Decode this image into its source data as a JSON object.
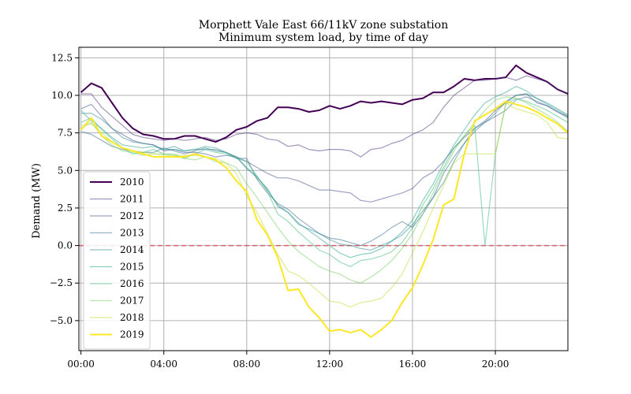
{
  "chart_data": {
    "type": "line",
    "title": "Morphett Vale East 66/11kV zone substation",
    "subtitle": "Minimum system load, by time of day",
    "xlabel": "",
    "ylabel": "Demand (MW)",
    "x_ticks": [
      "00:00",
      "04:00",
      "08:00",
      "12:00",
      "16:00",
      "20:00"
    ],
    "x_tick_hours": [
      0,
      4,
      8,
      12,
      16,
      20
    ],
    "y_ticks": [
      -5.0,
      -2.5,
      0.0,
      2.5,
      5.0,
      7.5,
      10.0,
      12.5
    ],
    "y_tick_labels": [
      "−5.0",
      "−2.5",
      "0.0",
      "2.5",
      "5.0",
      "7.5",
      "10.0",
      "12.5"
    ],
    "xlim": [
      -0.1,
      23.5
    ],
    "ylim": [
      -7.0,
      13.2
    ],
    "grid": true,
    "legend_position": "lower-left",
    "reference_line": {
      "y": 0,
      "color": "#d9606a",
      "style": "dashed"
    },
    "x": [
      0,
      0.5,
      1,
      1.5,
      2,
      2.5,
      3,
      3.5,
      4,
      4.5,
      5,
      5.5,
      6,
      6.5,
      7,
      7.5,
      8,
      8.5,
      9,
      9.5,
      10,
      10.5,
      11,
      11.5,
      12,
      12.5,
      13,
      13.5,
      14,
      14.5,
      15,
      15.5,
      16,
      16.5,
      17,
      17.5,
      18,
      18.5,
      19,
      19.5,
      20,
      20.5,
      21,
      21.5,
      22,
      22.5,
      23,
      23.5
    ],
    "series": [
      {
        "name": "2010",
        "color": "#440154",
        "width": 2.0,
        "opacity": 1.0,
        "values": [
          10.2,
          10.8,
          10.5,
          9.5,
          8.5,
          7.8,
          7.4,
          7.3,
          7.1,
          7.1,
          7.3,
          7.3,
          7.1,
          6.9,
          7.2,
          7.7,
          7.9,
          8.3,
          8.5,
          9.2,
          9.2,
          9.1,
          8.9,
          9.0,
          9.3,
          9.1,
          9.3,
          9.6,
          9.5,
          9.6,
          9.5,
          9.4,
          9.7,
          9.8,
          10.2,
          10.2,
          10.6,
          11.1,
          11.0,
          11.1,
          11.1,
          11.2,
          12.0,
          11.5,
          11.2,
          10.9,
          10.4,
          10.1
        ]
      },
      {
        "name": "2011",
        "color": "#472a7a",
        "width": 1.2,
        "opacity": 0.5,
        "values": [
          10.1,
          10.1,
          9.2,
          8.6,
          8.0,
          7.4,
          7.2,
          7.1,
          7.0,
          7.1,
          7.0,
          7.1,
          7.2,
          7.0,
          7.1,
          7.4,
          7.5,
          7.4,
          7.1,
          7.0,
          6.6,
          6.7,
          6.4,
          6.3,
          6.4,
          6.4,
          6.3,
          5.9,
          6.4,
          6.5,
          6.8,
          7.0,
          7.4,
          7.7,
          8.2,
          9.2,
          10.0,
          10.5,
          11.0,
          11.0,
          11.1,
          11.2,
          11.0,
          11.3,
          11.1,
          10.9,
          10.4,
          10.1
        ]
      },
      {
        "name": "2012",
        "color": "#3e4989",
        "width": 1.2,
        "opacity": 0.5,
        "values": [
          9.1,
          9.4,
          8.6,
          7.8,
          7.4,
          7.0,
          6.8,
          6.7,
          6.3,
          6.4,
          6.2,
          6.2,
          6.1,
          5.9,
          6.0,
          5.9,
          5.6,
          5.2,
          4.8,
          4.5,
          4.5,
          4.3,
          4.0,
          3.7,
          3.7,
          3.6,
          3.5,
          3.0,
          2.9,
          3.1,
          3.3,
          3.5,
          3.8,
          4.5,
          4.9,
          5.6,
          6.5,
          7.2,
          7.8,
          8.3,
          9.0,
          9.5,
          10.0,
          10.1,
          9.5,
          9.3,
          8.9,
          8.5
        ]
      },
      {
        "name": "2013",
        "color": "#31688e",
        "width": 1.2,
        "opacity": 0.5,
        "values": [
          7.6,
          7.4,
          7.0,
          6.6,
          6.4,
          6.3,
          6.2,
          6.2,
          6.5,
          6.3,
          6.1,
          6.3,
          6.5,
          6.3,
          6.2,
          5.8,
          5.8,
          4.4,
          3.5,
          2.8,
          2.4,
          1.8,
          1.3,
          0.8,
          0.5,
          0.4,
          0.2,
          0.0,
          0.3,
          0.7,
          1.2,
          1.6,
          1.2,
          2.1,
          3.2,
          4.8,
          5.9,
          6.8,
          7.6,
          8.2,
          8.6,
          9.0,
          9.7,
          9.9,
          9.6,
          9.3,
          8.9,
          8.6
        ]
      },
      {
        "name": "2014",
        "color": "#26828e",
        "width": 1.2,
        "opacity": 0.5,
        "values": [
          8.8,
          8.8,
          8.4,
          7.8,
          7.2,
          6.9,
          6.8,
          6.7,
          6.4,
          6.6,
          6.3,
          6.4,
          6.4,
          6.4,
          6.2,
          5.9,
          5.2,
          4.5,
          3.8,
          2.6,
          2.2,
          1.4,
          1.1,
          0.8,
          0.4,
          0.1,
          0.0,
          -0.2,
          -0.3,
          0.0,
          0.3,
          0.7,
          1.4,
          2.3,
          3.2,
          4.2,
          5.6,
          6.8,
          7.8,
          8.2,
          8.8,
          9.6,
          10.0,
          10.1,
          9.8,
          9.5,
          9.1,
          8.7
        ]
      },
      {
        "name": "2015",
        "color": "#1f9e89",
        "width": 1.2,
        "opacity": 0.5,
        "values": [
          9.0,
          8.3,
          7.8,
          7.2,
          6.7,
          6.6,
          6.5,
          6.6,
          6.4,
          6.4,
          6.3,
          6.4,
          6.6,
          6.5,
          6.2,
          5.9,
          5.1,
          4.6,
          3.7,
          2.7,
          2.2,
          1.5,
          1.0,
          0.5,
          0.0,
          -0.5,
          -0.8,
          -0.6,
          -0.5,
          -0.2,
          0.3,
          0.9,
          1.7,
          3.0,
          4.1,
          5.5,
          6.7,
          7.7,
          8.7,
          9.5,
          9.9,
          10.2,
          10.6,
          10.3,
          9.8,
          9.4,
          9.0,
          8.6
        ]
      },
      {
        "name": "2016",
        "color": "#35b779",
        "width": 1.2,
        "opacity": 0.5,
        "values": [
          8.2,
          8.5,
          7.7,
          7.1,
          6.5,
          6.1,
          6.2,
          6.4,
          6.1,
          6.0,
          5.8,
          6.1,
          6.4,
          6.2,
          6.1,
          5.8,
          5.6,
          4.6,
          3.6,
          2.1,
          1.6,
          0.9,
          0.3,
          -0.3,
          -0.6,
          -1.1,
          -1.4,
          -1.0,
          -0.9,
          -0.7,
          -0.4,
          0.2,
          1.2,
          2.7,
          3.8,
          5.2,
          6.5,
          7.3,
          8.0,
          0.0,
          6.1,
          9.4,
          9.8,
          9.6,
          9.3,
          9.0,
          8.6,
          8.2
        ]
      },
      {
        "name": "2017",
        "color": "#6ece58",
        "width": 1.2,
        "opacity": 0.5,
        "values": [
          7.8,
          8.2,
          7.3,
          6.7,
          6.3,
          6.2,
          6.0,
          6.1,
          6.1,
          6.1,
          5.8,
          5.7,
          5.9,
          5.6,
          5.5,
          5.2,
          4.1,
          3.2,
          2.2,
          1.2,
          0.3,
          -0.4,
          -0.9,
          -1.4,
          -1.7,
          -1.9,
          -2.3,
          -2.5,
          -2.1,
          -1.6,
          -1.0,
          -0.2,
          0.8,
          2.1,
          3.5,
          5.0,
          6.3,
          7.3,
          8.2,
          9.0,
          9.7,
          9.9,
          9.8,
          9.5,
          9.1,
          8.7,
          8.2,
          7.6
        ]
      },
      {
        "name": "2018",
        "color": "#b5de2b",
        "width": 1.2,
        "opacity": 0.5,
        "values": [
          8.0,
          8.1,
          7.5,
          6.9,
          6.5,
          6.3,
          6.2,
          6.1,
          6.0,
          6.0,
          6.0,
          6.0,
          5.9,
          5.8,
          5.5,
          4.8,
          3.3,
          2.2,
          0.8,
          -0.6,
          -1.7,
          -2.0,
          -2.5,
          -3.1,
          -3.7,
          -3.8,
          -4.1,
          -3.8,
          -3.7,
          -3.5,
          -2.8,
          -1.9,
          -0.5,
          0.9,
          2.5,
          4.0,
          5.5,
          6.1,
          6.1,
          6.1,
          6.1,
          9.5,
          9.1,
          8.9,
          8.7,
          8.2,
          7.2,
          7.1
        ]
      },
      {
        "name": "2019",
        "color": "#fde725",
        "width": 2.0,
        "opacity": 1.0,
        "values": [
          7.7,
          8.5,
          7.3,
          6.9,
          6.5,
          6.3,
          6.1,
          5.9,
          5.9,
          5.9,
          5.9,
          6.1,
          5.9,
          5.7,
          5.2,
          4.3,
          3.6,
          1.7,
          0.7,
          -0.8,
          -3.0,
          -2.9,
          -4.1,
          -4.8,
          -5.7,
          -5.6,
          -5.8,
          -5.6,
          -6.1,
          -5.6,
          -5.0,
          -3.8,
          -2.8,
          -1.3,
          0.4,
          2.7,
          3.1,
          6.1,
          8.3,
          8.7,
          9.1,
          9.6,
          9.4,
          9.2,
          8.9,
          8.5,
          8.1,
          7.5
        ]
      }
    ]
  }
}
